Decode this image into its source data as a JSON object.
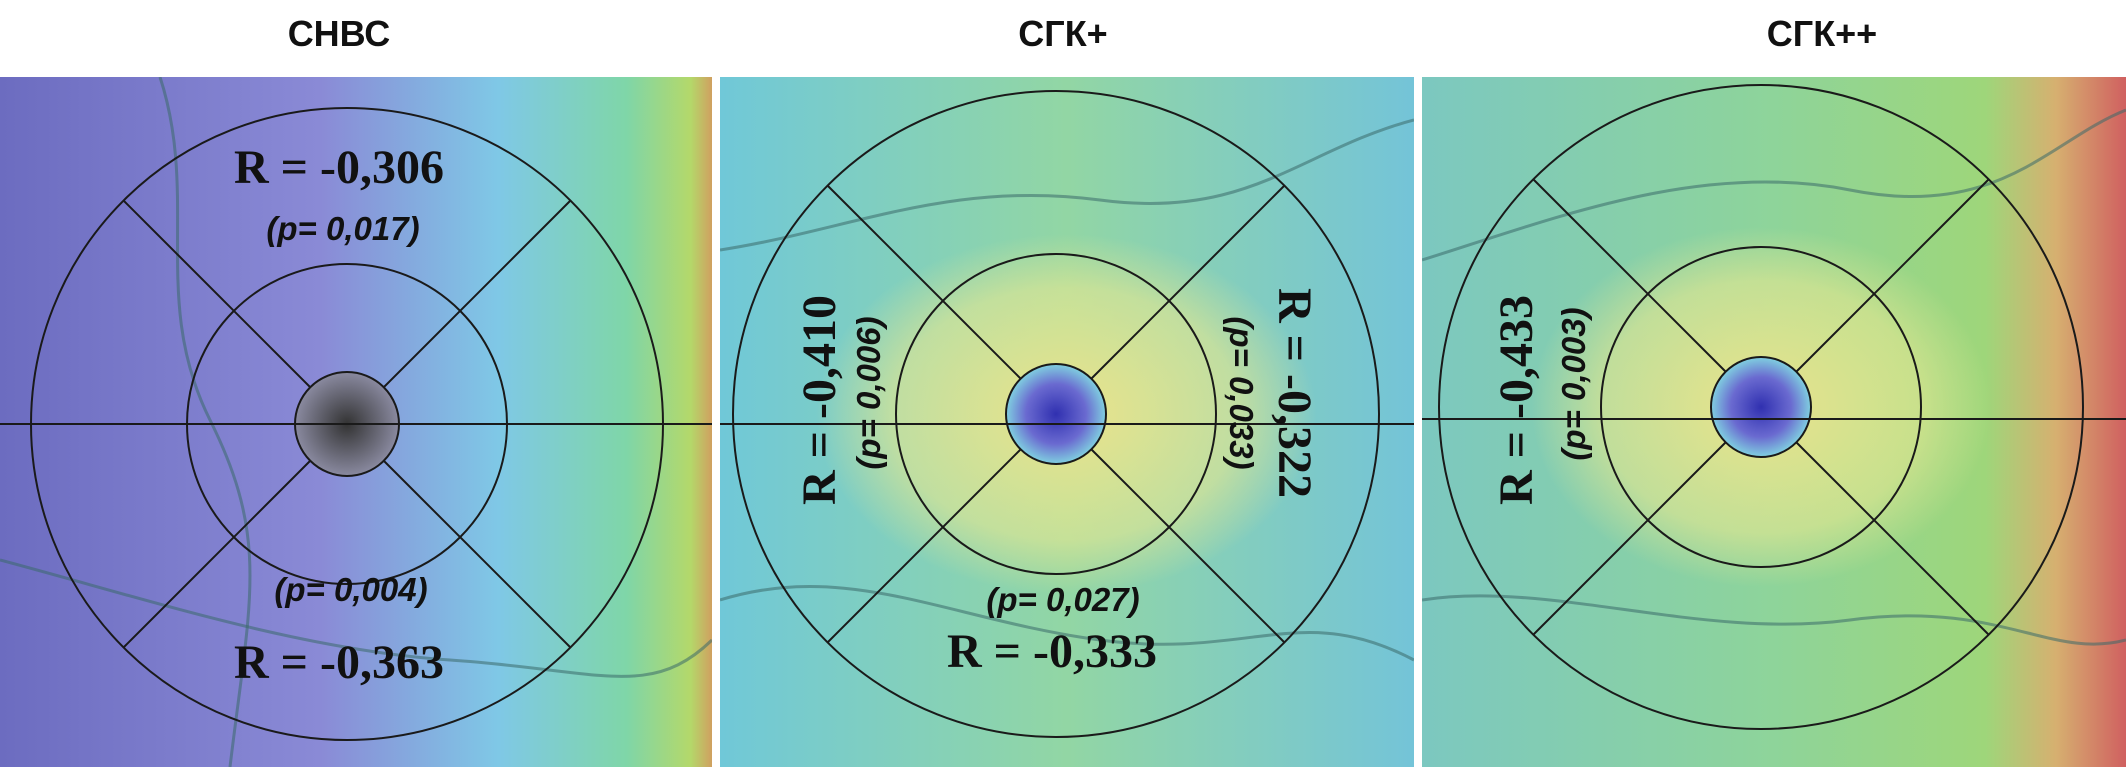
{
  "panels": [
    {
      "title": "СНВС",
      "annotations": [
        {
          "r": "R = -0,306",
          "p": "(p= 0,017)"
        },
        {
          "r": "R = -0,363",
          "p": "(p= 0,004)"
        }
      ]
    },
    {
      "title": "СГК+",
      "annotations": [
        {
          "r": "R = -0,410",
          "p": "(p= 0,006)"
        },
        {
          "r": "R = -0,322",
          "p": "(p= 0,033)"
        },
        {
          "r": "R = -0,333",
          "p": "(p= 0,027)"
        }
      ]
    },
    {
      "title": "СГК++",
      "annotations": [
        {
          "r": "R = -0,433",
          "p": "(p= 0,003)"
        }
      ]
    }
  ]
}
